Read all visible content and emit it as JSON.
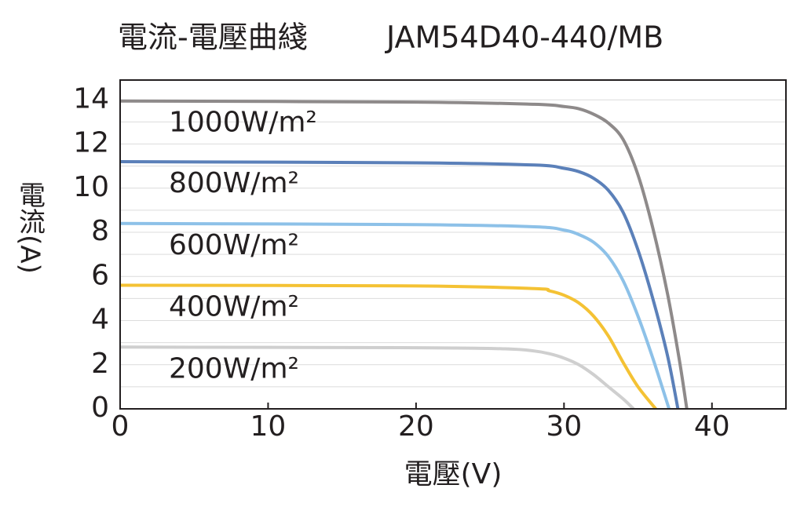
{
  "chart_data": {
    "type": "line",
    "title": "電流-電壓曲綫",
    "subtitle": "JAM54D40-440/MB",
    "x_label": "電壓(V)",
    "y_label": "電流(A)",
    "xlim": [
      0,
      45
    ],
    "xticks": [
      0,
      10,
      20,
      30,
      40
    ],
    "ylim": [
      0,
      14.9
    ],
    "yticks": [
      0,
      2,
      4,
      6,
      8,
      10,
      12,
      14
    ],
    "y_minor_ticks": [
      1,
      3,
      5,
      7,
      9,
      11,
      13
    ],
    "grid": true,
    "series": [
      {
        "name": "1000W/m²",
        "color": "#8e8a8a",
        "x": [
          0,
          20,
          28,
          30,
          31,
          32,
          33,
          34,
          35,
          36,
          37,
          37.8,
          38.3
        ],
        "values": [
          13.95,
          13.9,
          13.8,
          13.7,
          13.6,
          13.35,
          12.95,
          12.2,
          10.6,
          8.2,
          5.2,
          2.2,
          0
        ]
      },
      {
        "name": "800W/m²",
        "color": "#5b80b9",
        "x": [
          0,
          20,
          28,
          30,
          31,
          32,
          33,
          34,
          35,
          36,
          37,
          37.7
        ],
        "values": [
          11.2,
          11.15,
          11.05,
          10.9,
          10.75,
          10.45,
          9.9,
          8.9,
          7.2,
          5.0,
          2.4,
          0
        ]
      },
      {
        "name": "600W/m²",
        "color": "#8dc1e8",
        "x": [
          0,
          20,
          28,
          30,
          31,
          32,
          33,
          34,
          35,
          36,
          37.1
        ],
        "values": [
          8.4,
          8.35,
          8.25,
          8.1,
          7.9,
          7.55,
          6.9,
          5.8,
          4.2,
          2.3,
          0
        ]
      },
      {
        "name": "400W/m²",
        "color": "#f4c234",
        "x": [
          0,
          20,
          28,
          29,
          30,
          31,
          32,
          33,
          34,
          35,
          36.2
        ],
        "values": [
          5.6,
          5.57,
          5.45,
          5.35,
          5.15,
          4.8,
          4.2,
          3.3,
          2.1,
          1.0,
          0
        ]
      },
      {
        "name": "200W/m²",
        "color": "#cfcfcf",
        "x": [
          0,
          20,
          26,
          28,
          29,
          30,
          31,
          32,
          33,
          34,
          34.7
        ],
        "values": [
          2.8,
          2.77,
          2.72,
          2.62,
          2.5,
          2.3,
          2.0,
          1.55,
          1.0,
          0.45,
          0
        ]
      }
    ]
  }
}
